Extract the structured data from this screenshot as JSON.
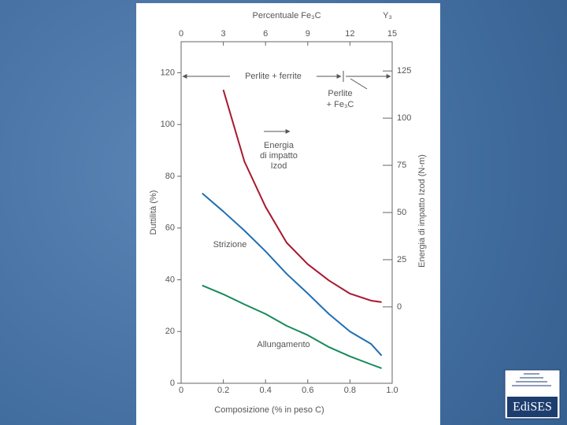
{
  "chart_data": {
    "type": "line",
    "title": "Percentuale Fe₃C",
    "figure_label": "Y₃",
    "x_label": "Composizione (% in peso C)",
    "y_label": "Duttilità (%)",
    "y2_label": "Energia di impatto Izod (N-m)",
    "xlim": [
      0,
      1.0
    ],
    "xticks": [
      0,
      0.2,
      0.4,
      0.6,
      0.8,
      {
        "value": 1,
        "label": "1.0"
      }
    ],
    "x2lim": [
      0,
      15
    ],
    "x2ticks": [
      0,
      3,
      6,
      9,
      12,
      15
    ],
    "ylim": [
      0,
      132
    ],
    "yticks": [
      0,
      20,
      40,
      60,
      80,
      100,
      120
    ],
    "y2lim": [
      -40.5,
      140.5
    ],
    "y2ticks": [
      0,
      25,
      50,
      75,
      100,
      125
    ],
    "grid": false,
    "annotations": [
      "Perlite + ferrite",
      "Perlite",
      "+ Fe₃C",
      "Energia",
      "di impatto",
      "Izod"
    ],
    "series": [
      {
        "name": "Strizione",
        "color": "#1f6fb4",
        "x": [
          0.1,
          0.2,
          0.3,
          0.4,
          0.5,
          0.6,
          0.7,
          0.8,
          0.9,
          0.95
        ],
        "values": [
          73.4,
          66.4,
          59,
          51,
          42.3,
          34.7,
          26.8,
          20,
          15.2,
          10.7
        ]
      },
      {
        "name": "Allungamento",
        "color": "#178a5a",
        "x": [
          0.1,
          0.2,
          0.3,
          0.4,
          0.5,
          0.6,
          0.7,
          0.8,
          0.9,
          0.95
        ],
        "values": [
          37.8,
          34.4,
          30.5,
          26.8,
          22.2,
          18.6,
          14,
          10.4,
          7.3,
          5.8
        ]
      },
      {
        "name": "Energia di impatto Izod",
        "color": "#a8182e",
        "axis": "y2",
        "x": [
          0.2,
          0.3,
          0.4,
          0.5,
          0.6,
          0.7,
          0.8,
          0.9,
          0.95
        ],
        "values": [
          115,
          77,
          53,
          34,
          22.6,
          14,
          7,
          3.3,
          2.5
        ]
      }
    ]
  },
  "logo_text": "EdiSES"
}
